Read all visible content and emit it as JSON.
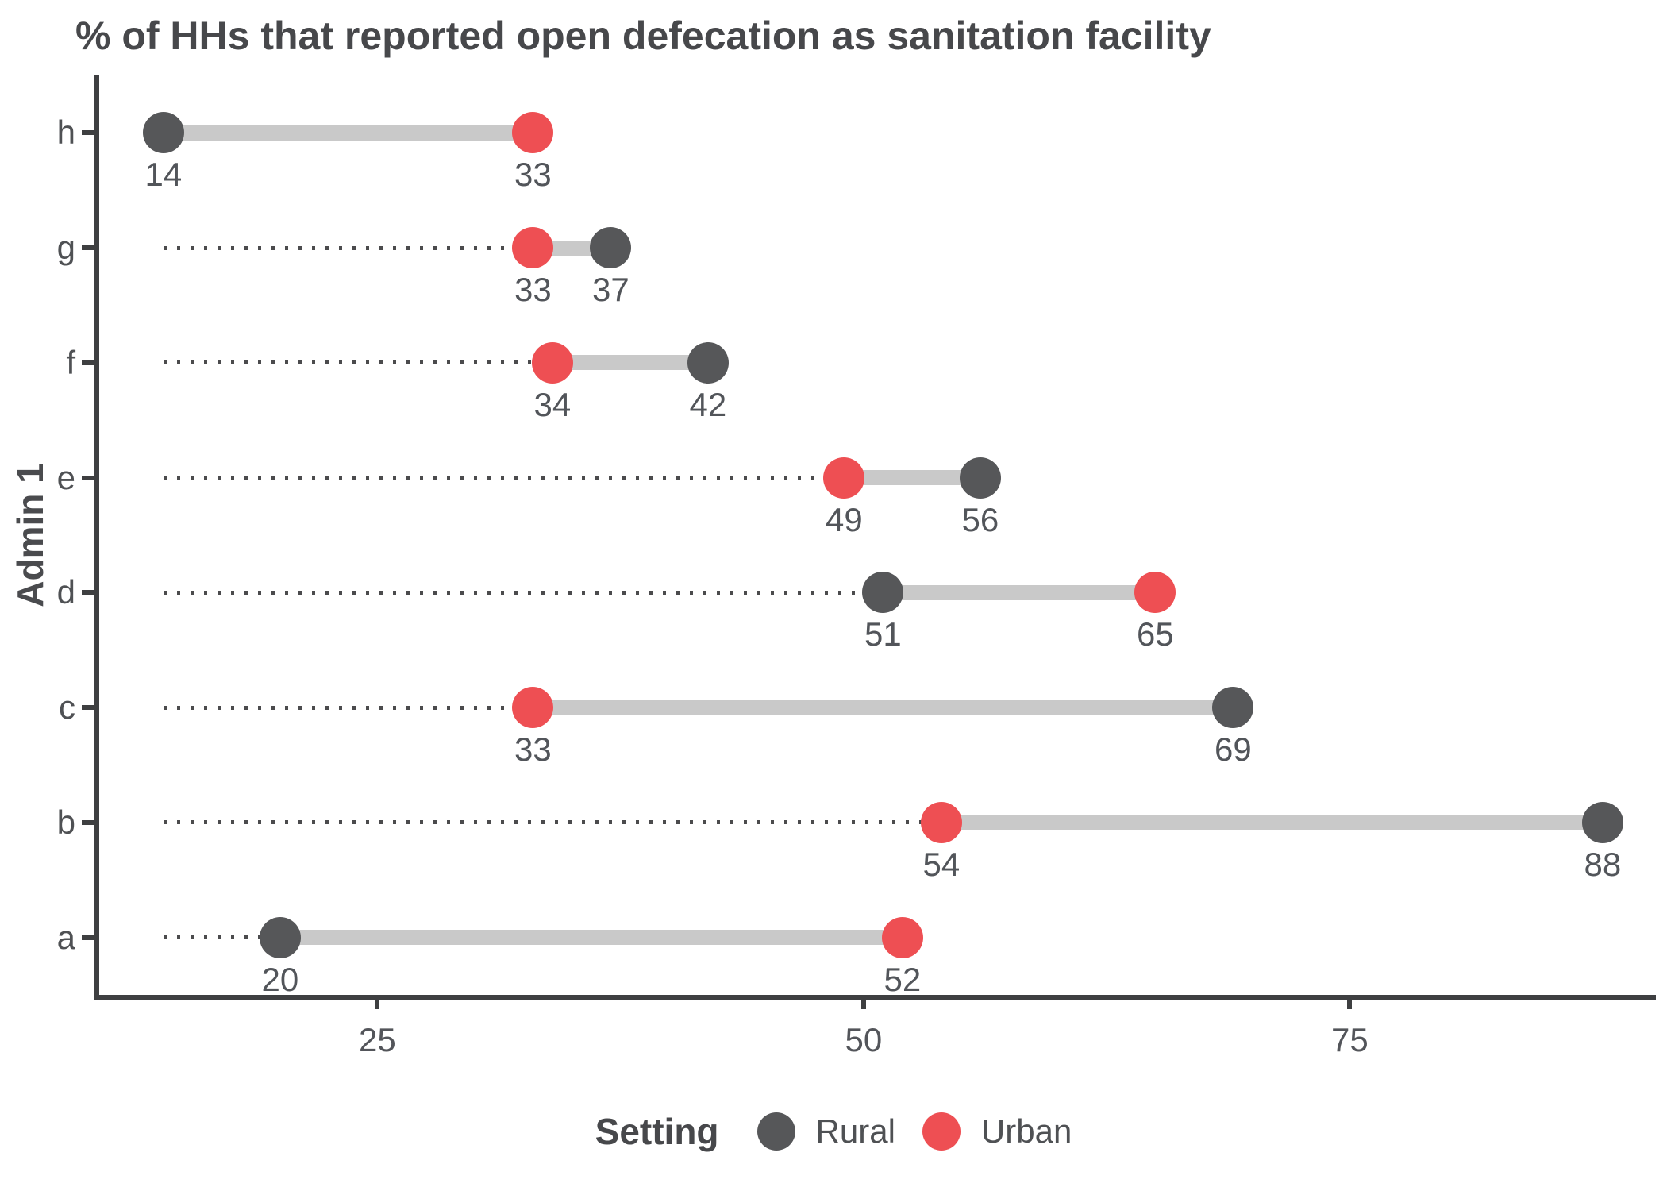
{
  "title": "% of HHs that reported open defecation as sanitation facility",
  "colors": {
    "rural": "#565759",
    "urban": "#ee4f53",
    "connector": "#c9c9c9",
    "dotted": "#4b4b4d",
    "axis": "#3e3f41",
    "text": "#52555a",
    "title_text": "#47484b"
  },
  "legend": {
    "title": "Setting",
    "items": [
      {
        "label": "Rural",
        "color_key": "rural"
      },
      {
        "label": "Urban",
        "color_key": "urban"
      }
    ]
  },
  "chart_data": {
    "type": "dumbbell",
    "title": "% of HHs that reported open defecation as sanitation facility",
    "xlabel": "",
    "ylabel": "Admin 1",
    "xlim": [
      10.7,
      90.7
    ],
    "xticks": [
      25,
      50,
      75
    ],
    "grid": "off",
    "legend_position": "bottom",
    "baseline_value": 14,
    "categories": [
      "h",
      "g",
      "f",
      "e",
      "d",
      "c",
      "b",
      "a"
    ],
    "series": [
      {
        "name": "Rural",
        "color_key": "rural",
        "values": [
          14,
          37,
          42,
          56,
          51,
          69,
          88,
          20
        ]
      },
      {
        "name": "Urban",
        "color_key": "urban",
        "values": [
          33,
          33,
          34,
          49,
          65,
          33,
          54,
          52
        ]
      }
    ]
  }
}
